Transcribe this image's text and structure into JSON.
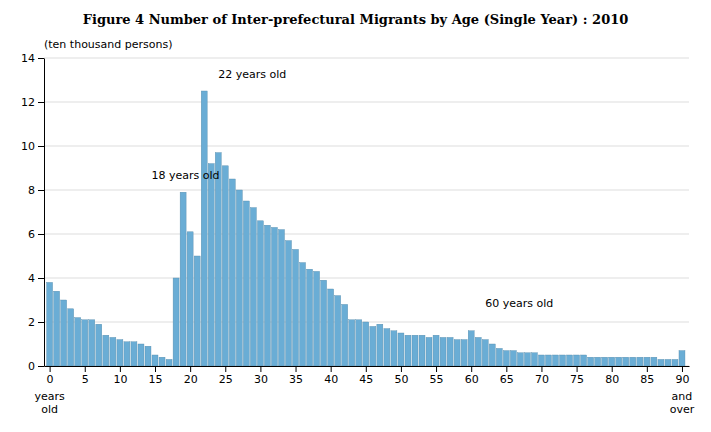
{
  "chart_data": {
    "type": "bar",
    "title": "Figure 4   Number of Inter-prefectural Migrants by Age (Single Year) : 2010",
    "ylabel": "(ten thousand persons)",
    "color": "#6aadd5",
    "x": [
      0,
      1,
      2,
      3,
      4,
      5,
      6,
      7,
      8,
      9,
      10,
      11,
      12,
      13,
      14,
      15,
      16,
      17,
      18,
      19,
      20,
      21,
      22,
      23,
      24,
      25,
      26,
      27,
      28,
      29,
      30,
      31,
      32,
      33,
      34,
      35,
      36,
      37,
      38,
      39,
      40,
      41,
      42,
      43,
      44,
      45,
      46,
      47,
      48,
      49,
      50,
      51,
      52,
      53,
      54,
      55,
      56,
      57,
      58,
      59,
      60,
      61,
      62,
      63,
      64,
      65,
      66,
      67,
      68,
      69,
      70,
      71,
      72,
      73,
      74,
      75,
      76,
      77,
      78,
      79,
      80,
      81,
      82,
      83,
      84,
      85,
      86,
      87,
      88,
      89,
      90
    ],
    "values": [
      3.8,
      3.4,
      3.0,
      2.6,
      2.2,
      2.1,
      2.1,
      1.9,
      1.4,
      1.3,
      1.2,
      1.1,
      1.1,
      1.0,
      0.9,
      0.5,
      0.4,
      0.3,
      4.0,
      7.9,
      6.1,
      5.0,
      12.5,
      9.2,
      9.7,
      9.1,
      8.5,
      8.0,
      7.5,
      7.2,
      6.6,
      6.4,
      6.3,
      6.2,
      5.7,
      5.3,
      4.7,
      4.4,
      4.3,
      3.9,
      3.5,
      3.2,
      2.8,
      2.1,
      2.1,
      2.0,
      1.8,
      1.9,
      1.7,
      1.6,
      1.5,
      1.4,
      1.4,
      1.4,
      1.3,
      1.4,
      1.3,
      1.3,
      1.2,
      1.2,
      1.6,
      1.3,
      1.2,
      1.0,
      0.8,
      0.7,
      0.7,
      0.6,
      0.6,
      0.6,
      0.5,
      0.5,
      0.5,
      0.5,
      0.5,
      0.5,
      0.5,
      0.4,
      0.4,
      0.4,
      0.4,
      0.4,
      0.4,
      0.4,
      0.4,
      0.4,
      0.4,
      0.3,
      0.3,
      0.3,
      0.7
    ],
    "xlim": [
      -0.8,
      91
    ],
    "xticks": [
      0,
      5,
      10,
      15,
      20,
      25,
      30,
      35,
      40,
      45,
      50,
      55,
      60,
      65,
      70,
      75,
      80,
      85,
      90
    ],
    "ylim": [
      0,
      14
    ],
    "yticks": [
      0,
      2,
      4,
      6,
      8,
      10,
      12,
      14
    ],
    "grid": true,
    "annotations": [
      {
        "text": "18 years old",
        "x": 14.5,
        "y": 8.5
      },
      {
        "text": "22 years old",
        "x": 24.0,
        "y": 13.1
      },
      {
        "text": "60 years old",
        "x": 62.0,
        "y": 2.7
      }
    ],
    "tick_notes": [
      {
        "text": "years old",
        "x": 0
      },
      {
        "text": "and over",
        "x": 90
      }
    ]
  }
}
